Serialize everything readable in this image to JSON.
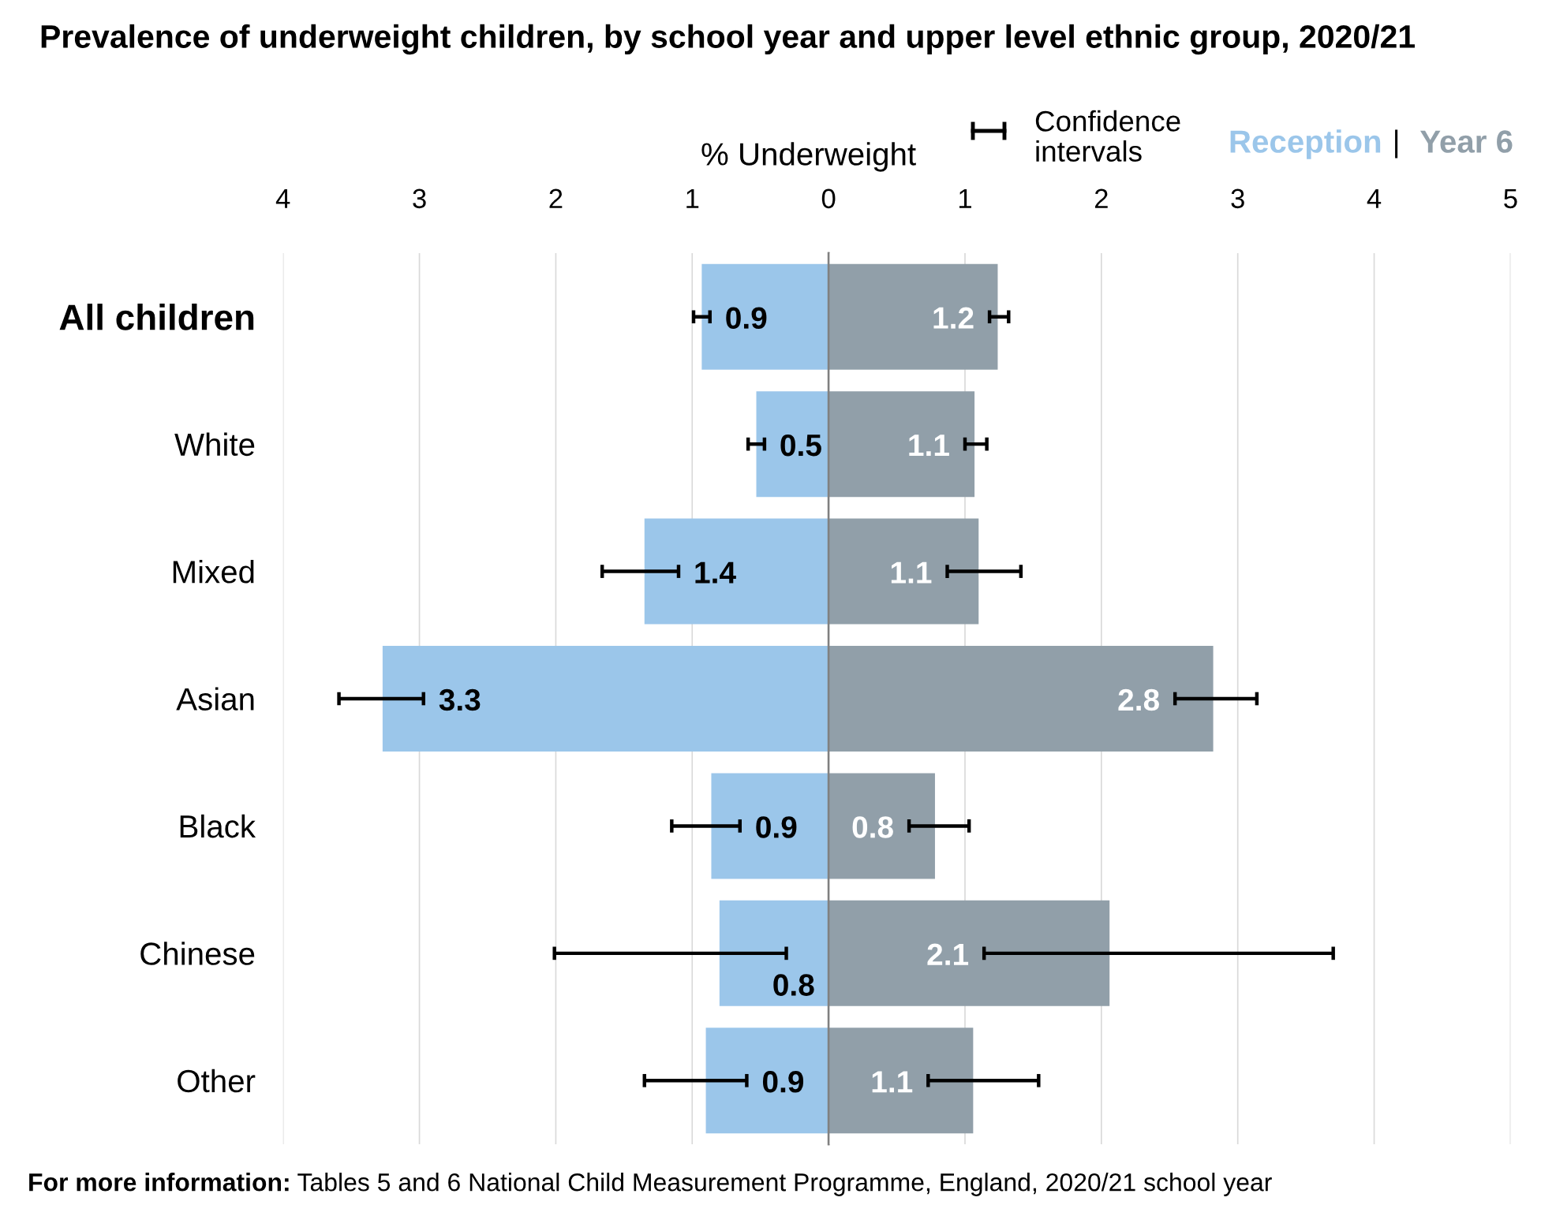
{
  "chart_data": [
    {
      "type": "bar",
      "orientation": "horizontal",
      "title": "Prevalence of underweight children, by school year and upper level ethnic group, 2020/21",
      "xlabel": "% Underweight",
      "categories": [
        "All children",
        "White",
        "Mixed",
        "Asian",
        "Black",
        "Chinese",
        "Other"
      ],
      "series": [
        {
          "name": "Reception",
          "color": "#9bc6ea",
          "values": [
            0.93,
            0.53,
            1.35,
            3.27,
            0.86,
            0.8,
            0.9
          ],
          "errors": [
            [
              0.87,
              0.99
            ],
            [
              0.47,
              0.59
            ],
            [
              1.1,
              1.66
            ],
            [
              2.97,
              3.59
            ],
            [
              0.65,
              1.15
            ],
            [
              0.31,
              2.01
            ],
            [
              0.6,
              1.35
            ]
          ],
          "value_labels": [
            "0.9",
            "0.5",
            "1.4",
            "3.3",
            "0.9",
            "0.8",
            "0.9"
          ]
        }
      ],
      "xlim": [
        4,
        0
      ],
      "xticks": [
        4,
        3,
        2,
        1
      ],
      "grid": "x"
    },
    {
      "type": "bar",
      "orientation": "horizontal",
      "categories": [
        null,
        null,
        null,
        null,
        null,
        null,
        null
      ],
      "series": [
        {
          "name": "Year 6",
          "color": "#919fa9",
          "values": [
            1.24,
            1.07,
            1.1,
            2.82,
            0.78,
            2.06,
            1.06
          ],
          "errors": [
            [
              1.18,
              1.32
            ],
            [
              1.0,
              1.16
            ],
            [
              0.87,
              1.41
            ],
            [
              2.54,
              3.14
            ],
            [
              0.59,
              1.03
            ],
            [
              1.14,
              3.7
            ],
            [
              0.73,
              1.54
            ]
          ],
          "value_labels": [
            "1.2",
            "1.1",
            "1.1",
            "2.8",
            "0.8",
            "2.1",
            "1.1"
          ]
        }
      ],
      "xlim": [
        0,
        5
      ],
      "xticks": [
        0,
        1,
        2,
        3,
        4,
        5
      ],
      "grid": "x",
      "legend": "top right",
      "annotations": [
        "Confidence intervals",
        "For more information: Tables 5 and 6 National Child Measurement Programme, England, 2020/21 school year"
      ]
    }
  ]
}
